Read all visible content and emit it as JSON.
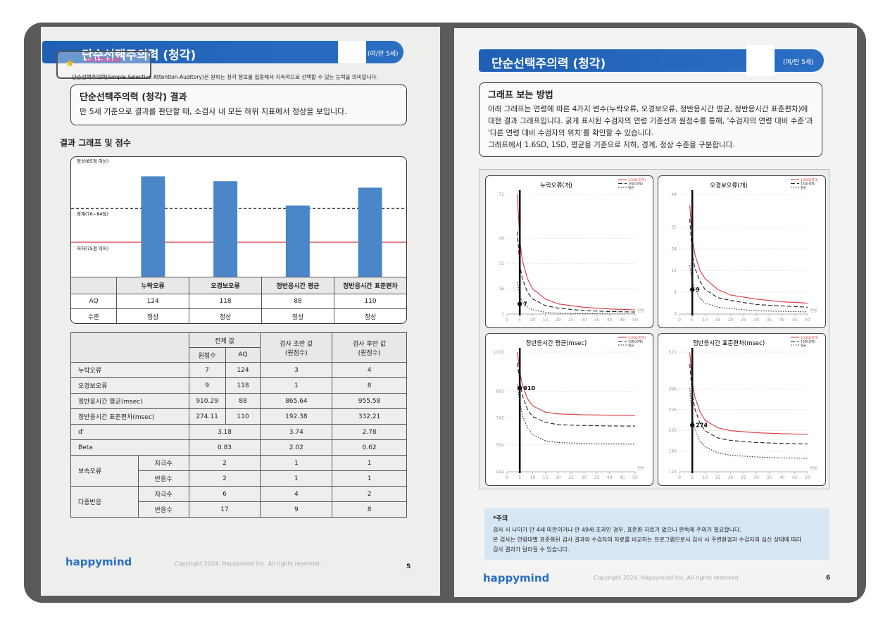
{
  "left_page": {
    "header": {
      "title": "단순선택주의력 (청각)",
      "meta": "(여/만 5세)"
    },
    "watermark": "withlael",
    "description": "단순선택주의력(Simple Selective Attention-Auditory)은 원하는 청각 정보를 집중해서 지속적으로 선택할 수 있는 능력을 의미합니다.",
    "result_box": {
      "title": "단순선택주의력 (청각) 결과",
      "text": "만 5세 기준으로 결과를 판단할 때, 소검사 내 모든 하위 지표에서 정상을 보입니다."
    },
    "section_title": "결과 그래프 및 점수",
    "zones": [
      "정상(85점 이상)",
      "경계(76~84점)",
      "저하(75점 이하)"
    ],
    "bar_color": "#4a86c8",
    "score_table": {
      "columns": [
        "누락오류",
        "오경보오류",
        "정반응시간 평균",
        "정반응시간 표준편차"
      ],
      "rows": [
        {
          "label": "AQ",
          "cells": [
            124,
            118,
            88,
            110
          ]
        },
        {
          "label": "수준",
          "cells": [
            "정상",
            "정상",
            "정상",
            "정상"
          ]
        }
      ]
    },
    "detail_table": {
      "total": "전체 값",
      "raw": "원점수",
      "aq": "AQ",
      "early": [
        "검사 초반 값",
        "(원점수)"
      ],
      "late": [
        "검사 후반 값",
        "(원점수)"
      ],
      "rows": [
        {
          "label": "누락오류",
          "values": [
            7,
            124,
            3,
            4
          ]
        },
        {
          "label": "오경보오류",
          "values": [
            9,
            118,
            1,
            8
          ]
        },
        {
          "label": "정반응시간 평균(msec)",
          "values": [
            910.29,
            88,
            865.64,
            955.58
          ]
        },
        {
          "label": "정반응시간 표준편차(msec)",
          "values": [
            274.11,
            110,
            192.38,
            332.21
          ]
        },
        {
          "label": "d'",
          "values": [
            3.18,
            3.74,
            2.78
          ]
        },
        {
          "label": "Beta",
          "values": [
            0.83,
            2.02,
            0.62
          ]
        },
        {
          "label": "보속오류",
          "subrows": [
            {
              "label": "자극수",
              "values": [
                2,
                1,
                1
              ]
            },
            {
              "label": "반응수",
              "values": [
                2,
                1,
                1
              ]
            }
          ]
        },
        {
          "label": "다중반응",
          "subrows": [
            {
              "label": "자극수",
              "values": [
                6,
                4,
                2
              ]
            },
            {
              "label": "반응수",
              "values": [
                17,
                9,
                8
              ]
            }
          ]
        }
      ]
    },
    "footer": {
      "brand": "happymind",
      "copyright": "Copyright 2024. Happymind Inc. All rights reserved.",
      "page": 5
    }
  },
  "right_page": {
    "header": {
      "title": "단순선택주의력 (청각)",
      "meta": "(여/만 5세)"
    },
    "guide": {
      "title": "그래프 보는 방법",
      "lines": [
        "아래 그래프는 연령에 따른 4가지 변수(누락오류, 오경보오류, 정반응시간 평균, 정반응시간 표준편차)에",
        "대한 결과 그래프입니다. 굵게 표시된 수검자의 연령 기준선과 원점수를 통해, '수검자의 연령 대비 수준'과",
        "'다른 연령 대비 수검자의 위치'를 확인할 수 있습니다.",
        "그래프에서 1.6SD, 1SD, 평균을 기준으로 저하, 경계, 정상 수준을 구분합니다."
      ]
    },
    "legend": [
      {
        "name": "1.6SD(저하)",
        "color": "#d9363e",
        "dash": "solid"
      },
      {
        "name": "1SD(경계)",
        "color": "#222222",
        "dash": "dashed"
      },
      {
        "name": "평균",
        "color": "#222222",
        "dash": "dotted"
      }
    ],
    "x_label": "연령",
    "xlim": [
      0,
      50
    ],
    "xticks": [
      0,
      5,
      10,
      15,
      20,
      25,
      30,
      35,
      40,
      45,
      50
    ],
    "charts": [
      {
        "title": "누락오류(개)",
        "ylim": [
          1,
          72
        ],
        "yticks": [
          1,
          16,
          31,
          46,
          72
        ],
        "x": [
          4,
          5,
          6,
          8,
          10,
          15,
          20,
          30,
          40,
          50
        ],
        "series": [
          [
            72,
            45,
            33,
            22,
            16,
            10,
            7,
            5,
            4,
            3.5
          ],
          [
            50,
            30,
            22,
            14,
            10,
            6,
            4.5,
            3,
            2.5,
            2.2
          ],
          [
            20,
            12,
            8,
            5,
            3.5,
            2,
            1.5,
            1.2,
            1.1,
            1
          ]
        ],
        "subject": {
          "x": 5,
          "value": 7
        }
      },
      {
        "title": "오경보오류(개)",
        "ylim": [
          0,
          44
        ],
        "yticks": [
          0,
          8,
          16,
          24,
          32,
          44
        ],
        "x": [
          4,
          5,
          6,
          8,
          10,
          15,
          20,
          30,
          40,
          50
        ],
        "series": [
          [
            40,
            28,
            22,
            16,
            13,
            9,
            7,
            5.5,
            4.5,
            4
          ],
          [
            35,
            22,
            17,
            12,
            9,
            6,
            5,
            3.5,
            3,
            2.5
          ],
          [
            18,
            12,
            9,
            6,
            4,
            2.5,
            2,
            1.2,
            1,
            0.8
          ]
        ],
        "subject": {
          "x": 5,
          "value": 9
        }
      },
      {
        "title": "정반응시간 평균(msec)",
        "ylim": [
          442,
          1110
        ],
        "yticks": [
          442,
          592,
          742,
          892,
          1110
        ],
        "x": [
          4,
          5,
          6,
          8,
          10,
          15,
          20,
          30,
          40,
          50
        ],
        "series": [
          [
            1110,
            1000,
            930,
            850,
            810,
            775,
            765,
            760,
            758,
            757
          ],
          [
            1050,
            950,
            870,
            790,
            750,
            718,
            705,
            700,
            698,
            697
          ],
          [
            930,
            830,
            760,
            690,
            650,
            615,
            605,
            600,
            598,
            597
          ]
        ],
        "subject": {
          "x": 5,
          "value": 910
        }
      },
      {
        "title": "정반응시간 표준편차(msec)",
        "ylim": [
          116,
          521
        ],
        "yticks": [
          116,
          186,
          256,
          326,
          396,
          521
        ],
        "x": [
          4,
          5,
          6,
          8,
          10,
          15,
          20,
          30,
          40,
          50
        ],
        "series": [
          [
            520,
            420,
            370,
            320,
            290,
            265,
            255,
            248,
            245,
            243
          ],
          [
            480,
            380,
            330,
            280,
            255,
            230,
            222,
            215,
            212,
            210
          ],
          [
            400,
            300,
            260,
            220,
            200,
            180,
            172,
            166,
            163,
            162
          ]
        ],
        "subject": {
          "x": 5,
          "value": 274
        }
      }
    ],
    "note": {
      "title": "*주의",
      "lines": [
        "검사 시 나이가 만 4세 미만이거나 만 49세 초과인 경우, 표준화 자료가 없으니 판독에 주의가 필요합니다.",
        "본 검사는 연령대별 표준화된 검사 결과와 수검자의 자료를 비교하는 프로그램으로서 검사 시 주변환경과 수검자의 심신 상태에 따라",
        "검사 결과가 달라질 수 있습니다."
      ]
    },
    "footer": {
      "brand": "happymind",
      "copyright": "Copyright 2024. Happymind Inc. All rights reserved.",
      "page": 6
    }
  }
}
